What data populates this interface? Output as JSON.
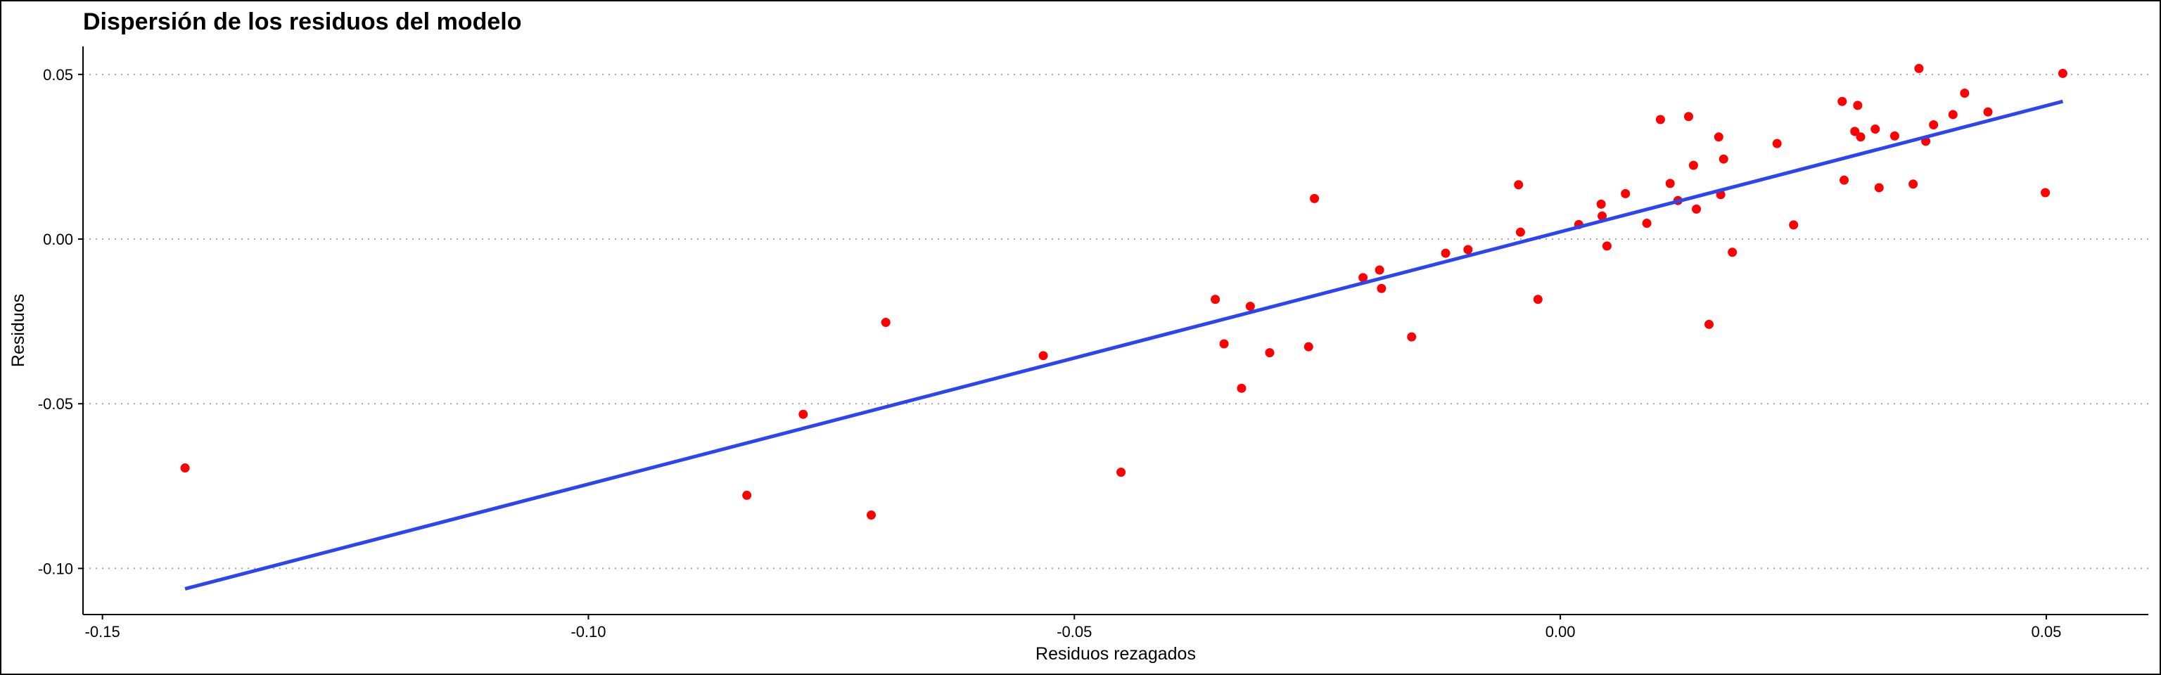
{
  "chart_data": {
    "type": "scatter",
    "title": "Dispersión de los residuos del modelo",
    "xlabel": "Residuos rezagados",
    "ylabel": "Residuos",
    "xlim": [
      -0.152,
      0.0605
    ],
    "ylim": [
      -0.114,
      0.0585
    ],
    "x_ticks": [
      -0.15,
      -0.1,
      -0.05,
      0.0,
      0.05
    ],
    "x_tick_labels": [
      "-0.15",
      "-0.10",
      "-0.05",
      "0.00",
      "0.05"
    ],
    "y_ticks": [
      -0.1,
      -0.05,
      0.0,
      0.05
    ],
    "y_tick_labels": [
      "-0.10",
      "-0.05",
      "0.00",
      "0.05"
    ],
    "grid": "horizontal dotted",
    "legend": "none",
    "point_color": "#ff0000",
    "line_color": "#2b45f2",
    "points": [
      {
        "x": -0.1415,
        "y": -0.0695
      },
      {
        "x": -0.0837,
        "y": -0.0778
      },
      {
        "x": -0.0779,
        "y": -0.0532
      },
      {
        "x": -0.0709,
        "y": -0.0838
      },
      {
        "x": -0.0694,
        "y": -0.0253
      },
      {
        "x": -0.0532,
        "y": -0.0354
      },
      {
        "x": -0.0452,
        "y": -0.0708
      },
      {
        "x": -0.0355,
        "y": -0.0183
      },
      {
        "x": -0.0346,
        "y": -0.0318
      },
      {
        "x": -0.0328,
        "y": -0.0453
      },
      {
        "x": -0.0319,
        "y": -0.0204
      },
      {
        "x": -0.0299,
        "y": -0.0345
      },
      {
        "x": -0.0259,
        "y": -0.0327
      },
      {
        "x": -0.0253,
        "y": 0.0123
      },
      {
        "x": -0.0203,
        "y": -0.0117
      },
      {
        "x": -0.0186,
        "y": -0.0094
      },
      {
        "x": -0.0184,
        "y": -0.015
      },
      {
        "x": -0.0153,
        "y": -0.0297
      },
      {
        "x": -0.0118,
        "y": -0.0043
      },
      {
        "x": -0.0095,
        "y": -0.0032
      },
      {
        "x": -0.0043,
        "y": 0.0165
      },
      {
        "x": -0.0041,
        "y": 0.0021
      },
      {
        "x": -0.0023,
        "y": -0.0183
      },
      {
        "x": 0.0019,
        "y": 0.0044
      },
      {
        "x": 0.0042,
        "y": 0.0106
      },
      {
        "x": 0.0043,
        "y": 0.007
      },
      {
        "x": 0.0048,
        "y": -0.0021
      },
      {
        "x": 0.0067,
        "y": 0.0138
      },
      {
        "x": 0.0089,
        "y": 0.0048
      },
      {
        "x": 0.0103,
        "y": 0.0363
      },
      {
        "x": 0.0113,
        "y": 0.0169
      },
      {
        "x": 0.0121,
        "y": 0.0117
      },
      {
        "x": 0.0132,
        "y": 0.0372
      },
      {
        "x": 0.0137,
        "y": 0.0224
      },
      {
        "x": 0.014,
        "y": 0.0091
      },
      {
        "x": 0.0153,
        "y": -0.0259
      },
      {
        "x": 0.0163,
        "y": 0.031
      },
      {
        "x": 0.0165,
        "y": 0.0135
      },
      {
        "x": 0.0168,
        "y": 0.0243
      },
      {
        "x": 0.0177,
        "y": -0.004
      },
      {
        "x": 0.0223,
        "y": 0.029
      },
      {
        "x": 0.024,
        "y": 0.0043
      },
      {
        "x": 0.029,
        "y": 0.0418
      },
      {
        "x": 0.0292,
        "y": 0.0179
      },
      {
        "x": 0.0303,
        "y": 0.0327
      },
      {
        "x": 0.0306,
        "y": 0.0406
      },
      {
        "x": 0.0309,
        "y": 0.031
      },
      {
        "x": 0.0324,
        "y": 0.0334
      },
      {
        "x": 0.0328,
        "y": 0.0156
      },
      {
        "x": 0.0344,
        "y": 0.0313
      },
      {
        "x": 0.0363,
        "y": 0.0167
      },
      {
        "x": 0.0369,
        "y": 0.0518
      },
      {
        "x": 0.0376,
        "y": 0.0297
      },
      {
        "x": 0.0384,
        "y": 0.0347
      },
      {
        "x": 0.0404,
        "y": 0.0378
      },
      {
        "x": 0.0416,
        "y": 0.0443
      },
      {
        "x": 0.044,
        "y": 0.0386
      },
      {
        "x": 0.0499,
        "y": 0.0141
      },
      {
        "x": 0.0517,
        "y": 0.0503
      }
    ],
    "regression_line": {
      "x": [
        -0.1415,
        0.0517
      ],
      "y": [
        -0.1062,
        0.0418
      ]
    }
  }
}
